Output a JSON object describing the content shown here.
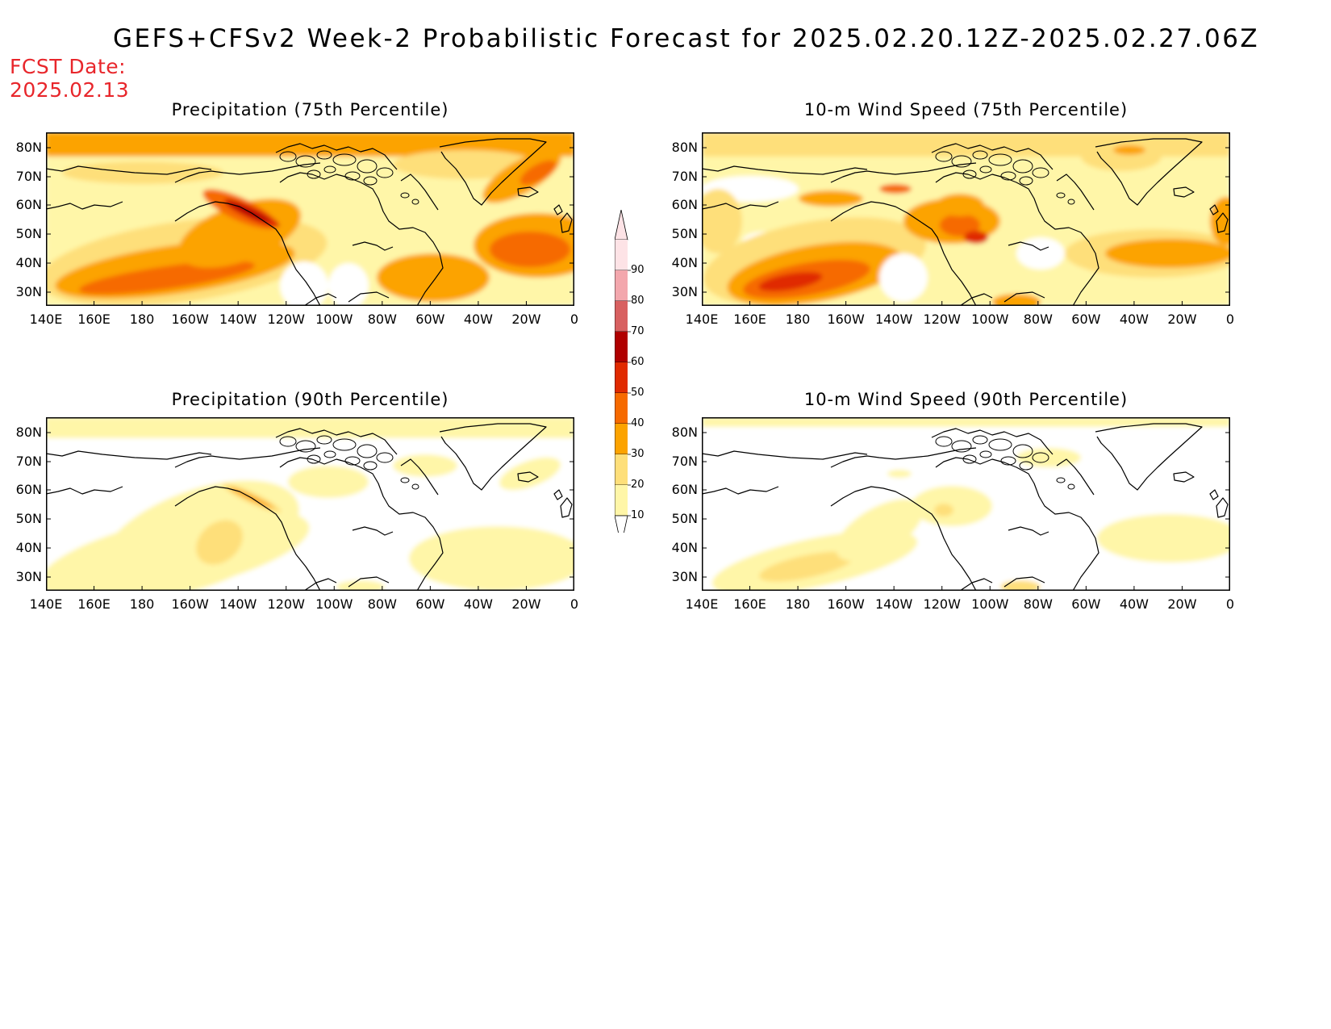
{
  "title": "GEFS+CFSv2 Week-2 Probabilistic Forecast for 2025.02.20.12Z-2025.02.27.06Z",
  "fcst_date": {
    "label": "FCST Date:",
    "value": "2025.02.13"
  },
  "panels": [
    {
      "id": "precip75",
      "title": "Precipitation (75th Percentile)",
      "intensity": "high"
    },
    {
      "id": "wind75",
      "title": "10-m Wind Speed (75th Percentile)",
      "intensity": "high"
    },
    {
      "id": "precip90",
      "title": "Precipitation (90th Percentile)",
      "intensity": "low"
    },
    {
      "id": "wind90",
      "title": "10-m Wind Speed (90th Percentile)",
      "intensity": "low"
    }
  ],
  "axes": {
    "lat_ticks": [
      "80N",
      "70N",
      "60N",
      "50N",
      "40N",
      "30N"
    ],
    "lon_ticks": [
      "140E",
      "160E",
      "180",
      "160W",
      "140W",
      "120W",
      "100W",
      "80W",
      "60W",
      "40W",
      "20W",
      "0"
    ]
  },
  "colorbar": {
    "levels": [
      "10",
      "20",
      "30",
      "40",
      "50",
      "60",
      "70",
      "80",
      "90"
    ],
    "colors": [
      "#ffffff",
      "#fff6a8",
      "#fedf7a",
      "#fca300",
      "#f66a00",
      "#e02a00",
      "#b00000",
      "#d86060",
      "#f3a7ad",
      "#fde3e6"
    ]
  }
}
